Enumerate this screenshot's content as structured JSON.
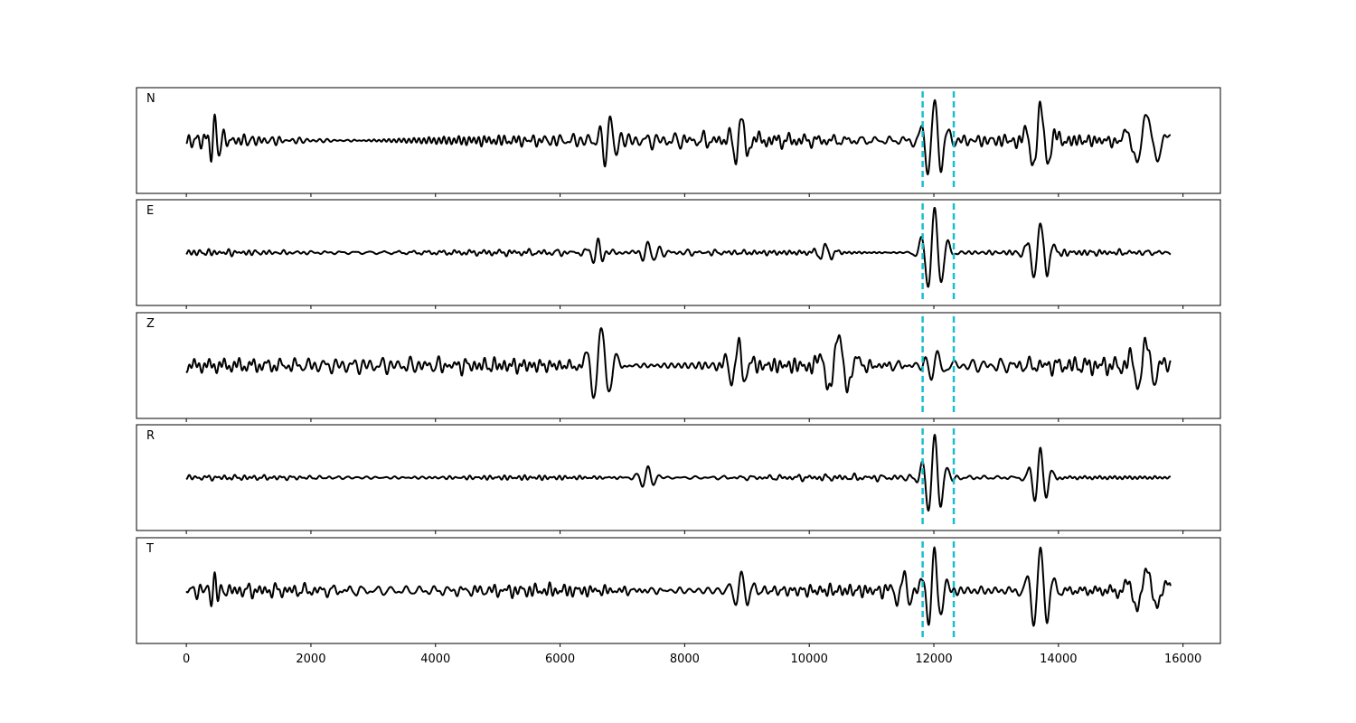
{
  "chart_data": {
    "type": "line",
    "title": "",
    "xlabel": "",
    "ylabel": "",
    "xlim": [
      -800,
      16600
    ],
    "x_ticks": [
      0,
      2000,
      4000,
      6000,
      8000,
      10000,
      12000,
      14000,
      16000
    ],
    "x_tick_labels": [
      "0",
      "2000",
      "4000",
      "6000",
      "8000",
      "10000",
      "12000",
      "14000",
      "16000"
    ],
    "x_range": [
      0,
      15800
    ],
    "grid": false,
    "shared_x": true,
    "colors": {
      "trace": "#000000",
      "marker": "#17becf"
    },
    "markers": [
      11820,
      12320
    ],
    "panels": [
      {
        "label": "N",
        "base_period": 110,
        "events": [
          {
            "x": 450,
            "amp": 0.55,
            "width": 80
          },
          {
            "x": 6800,
            "amp": 0.6,
            "width": 120
          },
          {
            "x": 8900,
            "amp": 0.55,
            "width": 140
          },
          {
            "x": 12000,
            "amp": 0.9,
            "width": 140
          },
          {
            "x": 13700,
            "amp": 0.8,
            "width": 160
          },
          {
            "x": 15400,
            "amp": 0.6,
            "width": 220
          }
        ],
        "noise": 0.28
      },
      {
        "label": "E",
        "base_period": 110,
        "events": [
          {
            "x": 6600,
            "amp": 0.3,
            "width": 100
          },
          {
            "x": 7400,
            "amp": 0.25,
            "width": 120
          },
          {
            "x": 10250,
            "amp": 0.2,
            "width": 120
          },
          {
            "x": 12000,
            "amp": 1.0,
            "width": 140
          },
          {
            "x": 13700,
            "amp": 0.7,
            "width": 140
          }
        ],
        "noise": 0.12
      },
      {
        "label": "Z",
        "base_period": 110,
        "events": [
          {
            "x": 6650,
            "amp": 0.9,
            "width": 160
          },
          {
            "x": 8850,
            "amp": 0.55,
            "width": 140
          },
          {
            "x": 10450,
            "amp": 0.7,
            "width": 200
          },
          {
            "x": 12050,
            "amp": 0.35,
            "width": 140
          },
          {
            "x": 15400,
            "amp": 0.55,
            "width": 180
          }
        ],
        "noise": 0.3
      },
      {
        "label": "R",
        "base_period": 110,
        "events": [
          {
            "x": 7400,
            "amp": 0.25,
            "width": 120
          },
          {
            "x": 12000,
            "amp": 1.0,
            "width": 130
          },
          {
            "x": 13700,
            "amp": 0.65,
            "width": 120
          }
        ],
        "noise": 0.1
      },
      {
        "label": "T",
        "base_period": 110,
        "events": [
          {
            "x": 450,
            "amp": 0.4,
            "width": 80
          },
          {
            "x": 8900,
            "amp": 0.5,
            "width": 120
          },
          {
            "x": 11500,
            "amp": 0.4,
            "width": 140
          },
          {
            "x": 12000,
            "amp": 0.9,
            "width": 130
          },
          {
            "x": 13700,
            "amp": 0.95,
            "width": 140
          },
          {
            "x": 15400,
            "amp": 0.55,
            "width": 200
          }
        ],
        "noise": 0.25
      }
    ]
  }
}
